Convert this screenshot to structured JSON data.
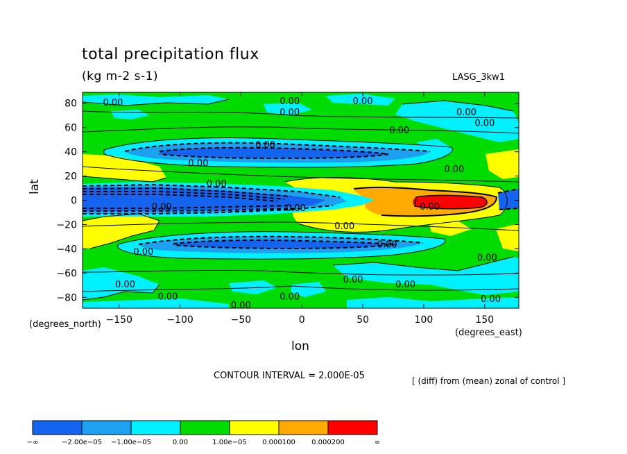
{
  "title": "total precipitation flux",
  "units": "(kg m-2 s-1)",
  "model_label": "LASG_3kw1",
  "contour_interval": "CONTOUR INTERVAL = 2.000E-05",
  "diff_note": "[ (diff) from (mean) zonal of control ]",
  "chart_data": {
    "type": "heatmap",
    "title": "total precipitation flux",
    "subtitle": "(kg m-2 s-1)",
    "xlabel": "lon",
    "ylabel": "lat",
    "x_units": "(degrees_east)",
    "y_units": "(degrees_north)",
    "xlim": [
      -180,
      178
    ],
    "ylim": [
      -89,
      89
    ],
    "x_ticks": [
      -150,
      -100,
      -50,
      0,
      50,
      100,
      150
    ],
    "x_tick_labels": [
      "−150",
      "−100",
      "−50",
      "0",
      "50",
      "100",
      "150"
    ],
    "y_ticks": [
      80,
      60,
      40,
      20,
      0,
      -20,
      -40,
      -60,
      -80
    ],
    "y_tick_labels": [
      "80",
      "60",
      "40",
      "20",
      "0",
      "−20",
      "−40",
      "−60",
      "−80"
    ],
    "colorbar": {
      "colors": [
        "#1464f0",
        "#1ea0f0",
        "#00f0ff",
        "#00dc00",
        "#ffff00",
        "#ffaa00",
        "#ff0000"
      ],
      "boundary_labels": [
        "−∞",
        "−2.00e−05",
        "−1.00e−05",
        "0.00",
        "1.00e−05",
        "0.000100",
        "0.000200",
        "∞"
      ]
    },
    "contour_labels": [
      {
        "lon": -155,
        "lat": 81,
        "text": "0.00"
      },
      {
        "lon": -10,
        "lat": 82,
        "text": "0.00"
      },
      {
        "lon": 50,
        "lat": 82,
        "text": "0.00"
      },
      {
        "lon": -10,
        "lat": 73,
        "text": "0.00"
      },
      {
        "lon": 135,
        "lat": 73,
        "text": "0.00"
      },
      {
        "lon": 150,
        "lat": 64,
        "text": "0.00"
      },
      {
        "lon": 80,
        "lat": 58,
        "text": "0.00"
      },
      {
        "lon": -30,
        "lat": 46,
        "text": "0.00"
      },
      {
        "lon": -85,
        "lat": 31,
        "text": "0.00"
      },
      {
        "lon": 125,
        "lat": 26,
        "text": "0.00"
      },
      {
        "lon": -70,
        "lat": 14,
        "text": "0.00"
      },
      {
        "lon": -115,
        "lat": -5,
        "text": "0.00"
      },
      {
        "lon": -5,
        "lat": -6,
        "text": "0.00"
      },
      {
        "lon": 105,
        "lat": -5,
        "text": "0.00"
      },
      {
        "lon": 35,
        "lat": -21,
        "text": "0.00"
      },
      {
        "lon": 70,
        "lat": -36,
        "text": "0.00"
      },
      {
        "lon": -130,
        "lat": -42,
        "text": "0.00"
      },
      {
        "lon": 152,
        "lat": -47,
        "text": "0.00"
      },
      {
        "lon": 42,
        "lat": -65,
        "text": "0.00"
      },
      {
        "lon": -145,
        "lat": -69,
        "text": "0.00"
      },
      {
        "lon": 85,
        "lat": -69,
        "text": "0.00"
      },
      {
        "lon": -110,
        "lat": -79,
        "text": "0.00"
      },
      {
        "lon": -10,
        "lat": -79,
        "text": "0.00"
      },
      {
        "lon": -50,
        "lat": -86,
        "text": "0.00"
      },
      {
        "lon": 155,
        "lat": -81,
        "text": "0.00"
      }
    ]
  }
}
